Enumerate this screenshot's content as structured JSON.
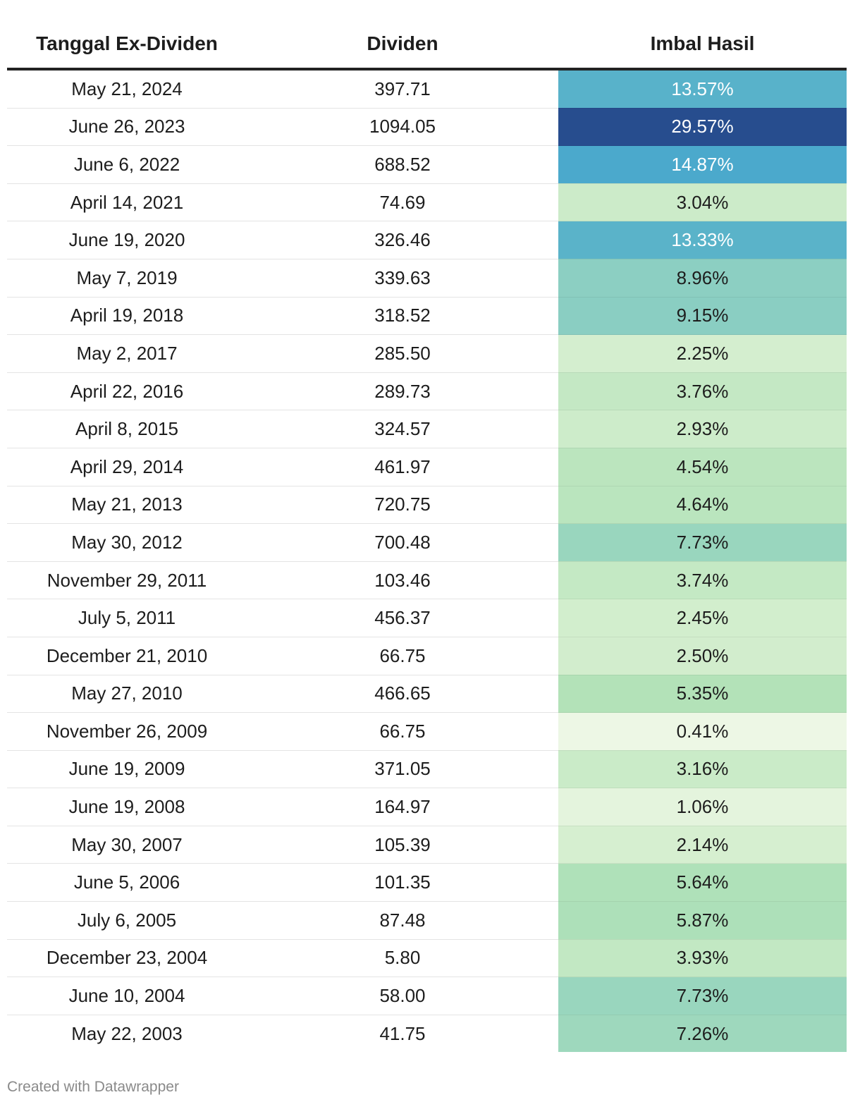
{
  "chart_data": {
    "type": "table",
    "columns": [
      "Tanggal Ex-Dividen",
      "Dividen",
      "Imbal Hasil"
    ],
    "rows": [
      {
        "date": "May 21, 2024",
        "dividend": "397.71",
        "yield": "13.57%"
      },
      {
        "date": "June 26, 2023",
        "dividend": "1094.05",
        "yield": "29.57%"
      },
      {
        "date": "June 6, 2022",
        "dividend": "688.52",
        "yield": "14.87%"
      },
      {
        "date": "April 14, 2021",
        "dividend": "74.69",
        "yield": "3.04%"
      },
      {
        "date": "June 19, 2020",
        "dividend": "326.46",
        "yield": "13.33%"
      },
      {
        "date": "May 7, 2019",
        "dividend": "339.63",
        "yield": "8.96%"
      },
      {
        "date": "April 19, 2018",
        "dividend": "318.52",
        "yield": "9.15%"
      },
      {
        "date": "May 2, 2017",
        "dividend": "285.50",
        "yield": "2.25%"
      },
      {
        "date": "April 22, 2016",
        "dividend": "289.73",
        "yield": "3.76%"
      },
      {
        "date": "April 8, 2015",
        "dividend": "324.57",
        "yield": "2.93%"
      },
      {
        "date": "April 29, 2014",
        "dividend": "461.97",
        "yield": "4.54%"
      },
      {
        "date": "May 21, 2013",
        "dividend": "720.75",
        "yield": "4.64%"
      },
      {
        "date": "May 30, 2012",
        "dividend": "700.48",
        "yield": "7.73%"
      },
      {
        "date": "November 29, 2011",
        "dividend": "103.46",
        "yield": "3.74%"
      },
      {
        "date": "July 5, 2011",
        "dividend": "456.37",
        "yield": "2.45%"
      },
      {
        "date": "December 21, 2010",
        "dividend": "66.75",
        "yield": "2.50%"
      },
      {
        "date": "May 27, 2010",
        "dividend": "466.65",
        "yield": "5.35%"
      },
      {
        "date": "November 26, 2009",
        "dividend": "66.75",
        "yield": "0.41%"
      },
      {
        "date": "June 19, 2009",
        "dividend": "371.05",
        "yield": "3.16%"
      },
      {
        "date": "June 19, 2008",
        "dividend": "164.97",
        "yield": "1.06%"
      },
      {
        "date": "May 30, 2007",
        "dividend": "105.39",
        "yield": "2.14%"
      },
      {
        "date": "June 5, 2006",
        "dividend": "101.35",
        "yield": "5.64%"
      },
      {
        "date": "July 6, 2005",
        "dividend": "87.48",
        "yield": "5.87%"
      },
      {
        "date": "December 23, 2004",
        "dividend": "5.80",
        "yield": "3.93%"
      },
      {
        "date": "June 10, 2004",
        "dividend": "58.00",
        "yield": "7.73%"
      },
      {
        "date": "May 22, 2003",
        "dividend": "41.75",
        "yield": "7.26%"
      }
    ],
    "color_scale": {
      "column": "Imbal Hasil",
      "domain_min": 0,
      "domain_max": 30,
      "stops": [
        "#f2f9ea",
        "#d6efd0",
        "#b2e2b8",
        "#8ccfc2",
        "#5bb4c9",
        "#4aa8cc",
        "#264a8c"
      ]
    }
  },
  "footer": {
    "credit": "Created with Datawrapper"
  }
}
